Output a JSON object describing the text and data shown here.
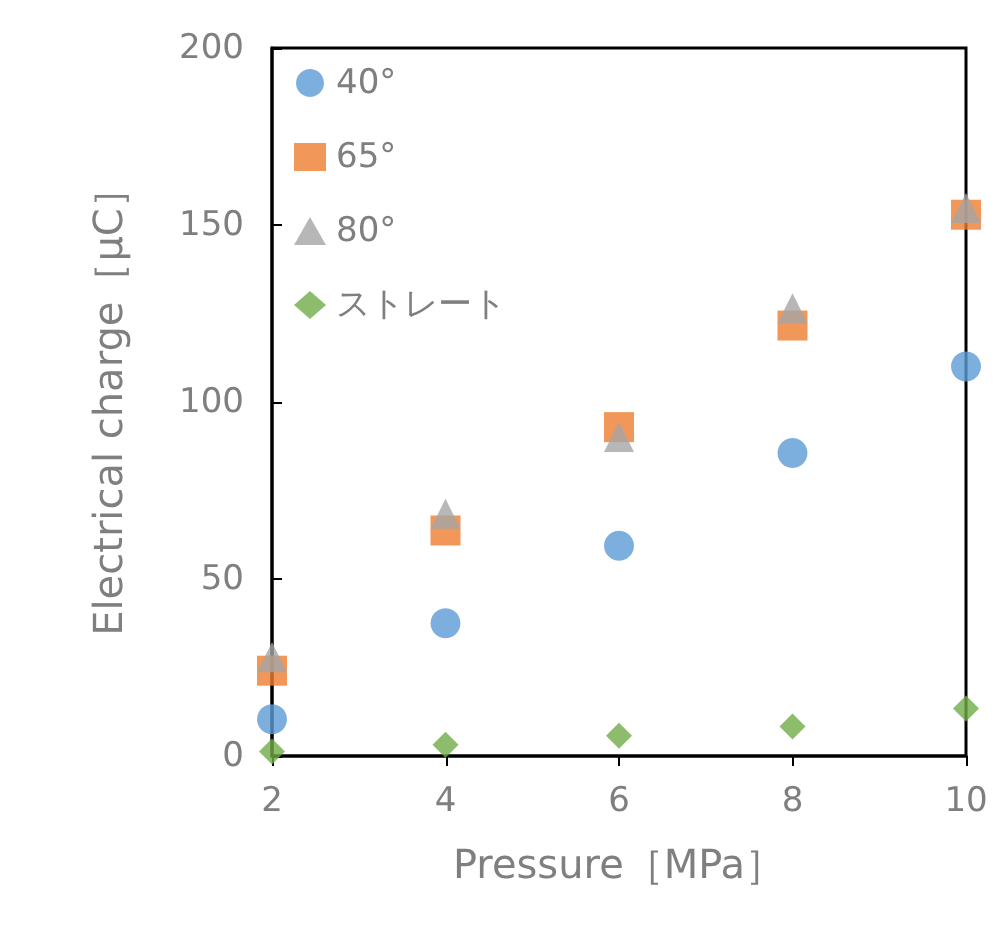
{
  "chart_data": {
    "type": "scatter",
    "xlabel": "Pressure［MPa］",
    "ylabel": "Electrical charge［μC］",
    "x": [
      2,
      4,
      6,
      8,
      10
    ],
    "xlim": [
      2,
      10
    ],
    "xticks": [
      2,
      4,
      6,
      8,
      10
    ],
    "ylim": [
      0,
      200
    ],
    "yticks": [
      0,
      50,
      100,
      150,
      200
    ],
    "grid": false,
    "legend": "top left",
    "series": [
      {
        "name": "40°",
        "color": "#5b9bd5",
        "marker": "circle",
        "values": [
          10.4,
          37.5,
          59.4,
          85.6,
          110
        ]
      },
      {
        "name": "65°",
        "color": "#ed7d31",
        "marker": "square",
        "values": [
          24.1,
          63.7,
          92.9,
          121.6,
          152.9
        ]
      },
      {
        "name": "80°",
        "color": "#a5a5a5",
        "marker": "triangle",
        "values": [
          27.9,
          68.4,
          90.1,
          126.5,
          154.8
        ]
      },
      {
        "name": "ストレート",
        "color": "#70ad47",
        "marker": "diamond",
        "values": [
          1.3,
          3.2,
          5.7,
          8.3,
          13.4
        ]
      }
    ]
  }
}
